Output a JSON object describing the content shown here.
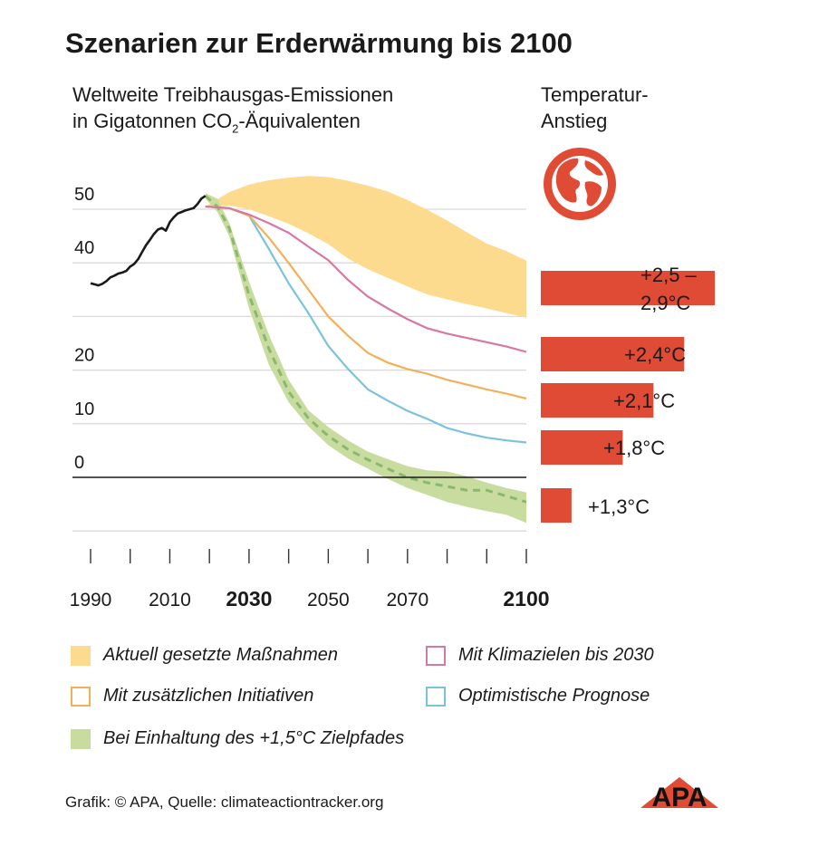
{
  "title": "Szenarien zur Erderwärmung bis 2100",
  "subtitle_line1": "Weltweite Treibhausgas-Emissionen",
  "subtitle_line2_pre": "in Gigatonnen CO",
  "subtitle_sub": "2",
  "subtitle_line2_post": "-Äquivalenten",
  "temperature_header_line1": "Temperatur-",
  "temperature_header_line2": "Anstieg",
  "source": "Grafik: © APA, Quelle: climateactiontracker.org",
  "logo_text": "APA",
  "globe_icon": "globe-icon",
  "colors": {
    "band_current": "#fcdb8f",
    "band_15": "#c9dca0",
    "line_history": "#1a1a1a",
    "line_climate_targets": "#d778a2",
    "line_initiatives": "#f2b158",
    "line_optimistic": "#7bc2dc",
    "line_15": "#8ab86c",
    "bar": "#e04b36",
    "grid": "#d9d9d9",
    "zero": "#1a1a1a"
  },
  "chart_data": {
    "type": "line",
    "title": "Szenarien zur Erderwärmung bis 2100",
    "ylabel": "Weltweite Treibhausgas-Emissionen in Gigatonnen CO₂-Äquivalenten",
    "xlim": [
      1990,
      2100
    ],
    "ylim": [
      -10,
      60
    ],
    "x_ticks": [
      1990,
      2000,
      2010,
      2020,
      2030,
      2040,
      2050,
      2060,
      2070,
      2080,
      2090,
      2100
    ],
    "x_tick_labels": [
      "1990",
      "2010",
      "2030",
      "2050",
      "2070",
      "2100"
    ],
    "x_tick_label_values": [
      1990,
      2010,
      2030,
      2050,
      2070,
      2100
    ],
    "bold_x_labels": [
      "2030",
      "2100"
    ],
    "y_ticks": [
      0,
      10,
      20,
      30,
      40,
      50
    ],
    "y_tick_labels": [
      "0",
      "10",
      "20",
      "40",
      "50"
    ],
    "y_tick_label_values": [
      0,
      10,
      20,
      40,
      50
    ],
    "grid": true,
    "history": {
      "x": [
        1990,
        1991,
        1992,
        1993,
        1994,
        1995,
        1996,
        1997,
        1998,
        1999,
        2000,
        2001,
        2002,
        2003,
        2004,
        2005,
        2006,
        2007,
        2008,
        2009,
        2010,
        2011,
        2012,
        2013,
        2014,
        2015,
        2016,
        2017,
        2018,
        2019
      ],
      "y": [
        36.2,
        36.0,
        35.8,
        36.1,
        36.6,
        37.3,
        37.6,
        38.0,
        38.2,
        38.5,
        39.3,
        39.8,
        40.7,
        42.0,
        43.3,
        44.3,
        45.4,
        46.2,
        46.5,
        46.0,
        47.6,
        48.5,
        49.2,
        49.5,
        49.8,
        50.0,
        50.2,
        51.0,
        52.0,
        52.5
      ]
    },
    "series": [
      {
        "name": "Aktuell gesetzte Maßnahmen",
        "kind": "band",
        "x": [
          2019,
          2025,
          2030,
          2035,
          2040,
          2045,
          2050,
          2055,
          2060,
          2065,
          2070,
          2075,
          2080,
          2085,
          2090,
          2095,
          2100
        ],
        "upper": [
          50.5,
          53.2,
          54.6,
          55.4,
          55.9,
          56.2,
          56.0,
          55.3,
          54.4,
          53.3,
          51.7,
          49.9,
          47.9,
          45.7,
          43.6,
          42.2,
          40.4
        ],
        "lower": [
          50.5,
          50.7,
          50.0,
          48.7,
          47.3,
          45.5,
          43.5,
          40.8,
          38.8,
          37.2,
          35.6,
          34.1,
          33.2,
          32.3,
          31.5,
          30.6,
          29.8
        ],
        "temperature": "+2,5 – 2,9°C",
        "temperature_value": 2.7
      },
      {
        "name": "Mit Klimazielen bis 2030",
        "kind": "line",
        "x": [
          2019,
          2025,
          2030,
          2035,
          2040,
          2045,
          2050,
          2055,
          2060,
          2065,
          2070,
          2075,
          2080,
          2085,
          2090,
          2095,
          2100
        ],
        "y": [
          50.5,
          50.2,
          49.0,
          47.4,
          45.6,
          43.0,
          40.5,
          36.8,
          33.7,
          31.5,
          29.5,
          27.8,
          26.8,
          26.0,
          25.2,
          24.4,
          23.4
        ],
        "temperature": "+2,4°C",
        "temperature_value": 2.4
      },
      {
        "name": "Mit zusätzlichen Initiativen",
        "kind": "line",
        "x": [
          2019,
          2025,
          2030,
          2035,
          2040,
          2045,
          2050,
          2055,
          2060,
          2065,
          2070,
          2075,
          2080,
          2085,
          2090,
          2095,
          2100
        ],
        "y": [
          50.5,
          50.2,
          48.8,
          44.7,
          40.0,
          35.0,
          30.0,
          26.4,
          23.2,
          21.4,
          20.2,
          19.3,
          18.2,
          17.3,
          16.4,
          15.6,
          14.7
        ],
        "temperature": "+2,1°C",
        "temperature_value": 2.1
      },
      {
        "name": "Optimistische Prognose",
        "kind": "line",
        "x": [
          2019,
          2025,
          2030,
          2035,
          2040,
          2045,
          2050,
          2055,
          2060,
          2065,
          2070,
          2075,
          2080,
          2085,
          2090,
          2095,
          2100
        ],
        "y": [
          50.5,
          50.2,
          48.8,
          42.6,
          36.2,
          30.6,
          24.5,
          20.2,
          16.4,
          14.3,
          12.4,
          10.9,
          9.2,
          8.2,
          7.4,
          6.9,
          6.5
        ],
        "temperature": "+1,8°C",
        "temperature_value": 1.8
      },
      {
        "name": "Bei Einhaltung des +1,5°C Zielpfades",
        "kind": "band_with_dashed_line",
        "x": [
          2019,
          2022,
          2025,
          2030,
          2035,
          2040,
          2045,
          2050,
          2055,
          2060,
          2065,
          2070,
          2075,
          2080,
          2085,
          2090,
          2095,
          2100
        ],
        "upper": [
          53.0,
          52.0,
          47.5,
          36.5,
          26.6,
          18.2,
          12.5,
          9.4,
          6.9,
          4.8,
          3.4,
          2.1,
          1.3,
          1.1,
          0.2,
          -1.0,
          -2.0,
          -2.8
        ],
        "lower": [
          52.0,
          49.5,
          45.0,
          31.5,
          21.0,
          14.0,
          9.5,
          6.0,
          3.5,
          1.6,
          -0.3,
          -2.0,
          -3.3,
          -4.6,
          -5.5,
          -6.3,
          -7.0,
          -8.5
        ],
        "y": [
          52.5,
          50.5,
          46.5,
          34.0,
          24.0,
          16.0,
          11.0,
          7.7,
          5.2,
          3.3,
          1.6,
          0.0,
          -1.0,
          -1.7,
          -2.4,
          -2.4,
          -3.5,
          -4.6
        ],
        "temperature": "+1,3°C",
        "temperature_value": 1.3
      }
    ],
    "temperature_labels": [
      "+2,5 –",
      "2,9°C",
      "+2,4°C",
      "+2,1°C",
      "+1,8°C",
      "+1,3°C"
    ],
    "legend": [
      {
        "label": "Aktuell gesetzte Maßnahmen",
        "style": "fill",
        "color": "#fcdb8f"
      },
      {
        "label": "Mit Klimazielen bis 2030",
        "style": "outline",
        "color": "#d778a2"
      },
      {
        "label": "Mit zusätzlichen Initiativen",
        "style": "outline",
        "color": "#f2b158"
      },
      {
        "label": "Optimistische Prognose",
        "style": "outline",
        "color": "#7bc2dc"
      },
      {
        "label": "Bei Einhaltung des +1,5°C Zielpfades",
        "style": "fill",
        "color": "#c9dca0"
      }
    ],
    "legend_position": "bottom"
  }
}
